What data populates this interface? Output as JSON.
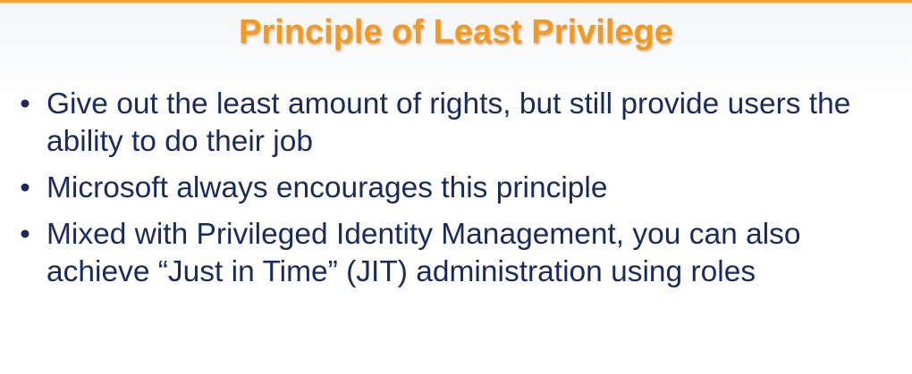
{
  "colors": {
    "title": "#f29a1f",
    "body_text": "#1b2a5c",
    "top_border": "#f2a33a"
  },
  "slide": {
    "title": "Principle of Least Privilege",
    "bullet_glyph": "•",
    "bullets": [
      "Give out the least amount of rights, but still provide users the ability to do their job",
      "Microsoft always encourages this principle",
      "Mixed with Privileged Identity Management, you can also achieve “Just in Time” (JIT) administration using roles"
    ]
  }
}
